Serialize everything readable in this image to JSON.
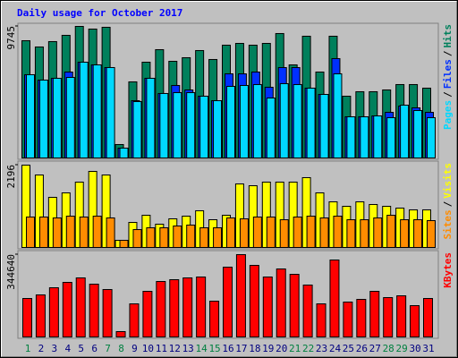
{
  "chart_data": [
    {
      "type": "bar",
      "title": "Daily usage for October 2017",
      "ylim": [
        0,
        9745
      ],
      "yticks": [
        9745
      ],
      "legend_separator": "/",
      "series": [
        {
          "name": "Hits",
          "color": "#00805c",
          "values": [
            8685,
            8221,
            8619,
            9083,
            9745,
            9547,
            9680,
            995,
            5636,
            7094,
            8022,
            7160,
            7426,
            7956,
            7293,
            8354,
            8486,
            8354,
            8486,
            9216,
            6895,
            9017,
            6365,
            9017,
            4575,
            4906,
            4906,
            5039,
            5437,
            5437,
            5171
          ]
        },
        {
          "name": "Files",
          "color": "#0030ff",
          "values": [
            6166,
            5768,
            5901,
            6365,
            7094,
            6895,
            6696,
            729,
            4243,
            5901,
            4774,
            5370,
            5039,
            4575,
            4243,
            6232,
            6232,
            6365,
            5238,
            6696,
            6696,
            5171,
            4707,
            7359,
            3050,
            3050,
            3116,
            3381,
            3845,
            3713,
            3381
          ]
        },
        {
          "name": "Pages",
          "color": "#00d8ff",
          "values": [
            6166,
            5768,
            5901,
            5967,
            7094,
            6895,
            6696,
            729,
            4177,
            5901,
            4774,
            4840,
            4840,
            4575,
            4243,
            5304,
            5370,
            5437,
            4442,
            5503,
            5437,
            5171,
            4707,
            6232,
            3050,
            3050,
            3116,
            2984,
            3912,
            3514,
            2984
          ]
        }
      ]
    },
    {
      "type": "bar",
      "ylim": [
        0,
        2196
      ],
      "yticks": [
        2196
      ],
      "legend_separator": "/",
      "series": [
        {
          "name": "Visits",
          "color": "#ffff00",
          "values": [
            2196,
            1933,
            1337,
            1456,
            1743,
            2029,
            1933,
            191,
            668,
            859,
            621,
            764,
            835,
            979,
            740,
            859,
            1695,
            1647,
            1743,
            1743,
            1743,
            1862,
            1456,
            1217,
            1098,
            1217,
            1146,
            1098,
            1050,
            1003,
            1003
          ]
        },
        {
          "name": "Sites",
          "color": "#ff8c00",
          "values": [
            812,
            812,
            788,
            835,
            812,
            835,
            788,
            191,
            477,
            525,
            525,
            573,
            597,
            525,
            525,
            788,
            764,
            812,
            812,
            740,
            812,
            835,
            788,
            835,
            740,
            740,
            788,
            859,
            740,
            740,
            716
          ]
        }
      ]
    },
    {
      "type": "bar",
      "ylim": [
        0,
        344640
      ],
      "yticks": [
        344640
      ],
      "series": [
        {
          "name": "KBytes",
          "color": "#ff0000",
          "values": [
            161078,
            176062,
            206030,
            228506,
            247236,
            221014,
            198538,
            22476,
            138602,
            191046,
            232252,
            239744,
            247236,
            250982,
            149840,
            292188,
            344640,
            299680,
            250982,
            284696,
            262220,
            217268,
            138602,
            322156,
            146094,
            157332,
            191046,
            164824,
            172316,
            131110,
            161078
          ]
        }
      ],
      "categories": [
        "1",
        "2",
        "3",
        "4",
        "5",
        "6",
        "7",
        "8",
        "9",
        "10",
        "11",
        "12",
        "13",
        "14",
        "15",
        "16",
        "17",
        "18",
        "19",
        "20",
        "21",
        "22",
        "23",
        "24",
        "25",
        "26",
        "27",
        "28",
        "29",
        "30",
        "31"
      ],
      "category_colors": [
        "#008040",
        "#000080",
        "#000080",
        "#000080",
        "#000080",
        "#000080",
        "#008040",
        "#008040",
        "#000080",
        "#000080",
        "#000080",
        "#000080",
        "#000080",
        "#008040",
        "#008040",
        "#000080",
        "#000080",
        "#000080",
        "#000080",
        "#000080",
        "#008040",
        "#008040",
        "#000080",
        "#000080",
        "#000080",
        "#000080",
        "#000080",
        "#008040",
        "#008040",
        "#000080",
        "#000080"
      ]
    }
  ]
}
